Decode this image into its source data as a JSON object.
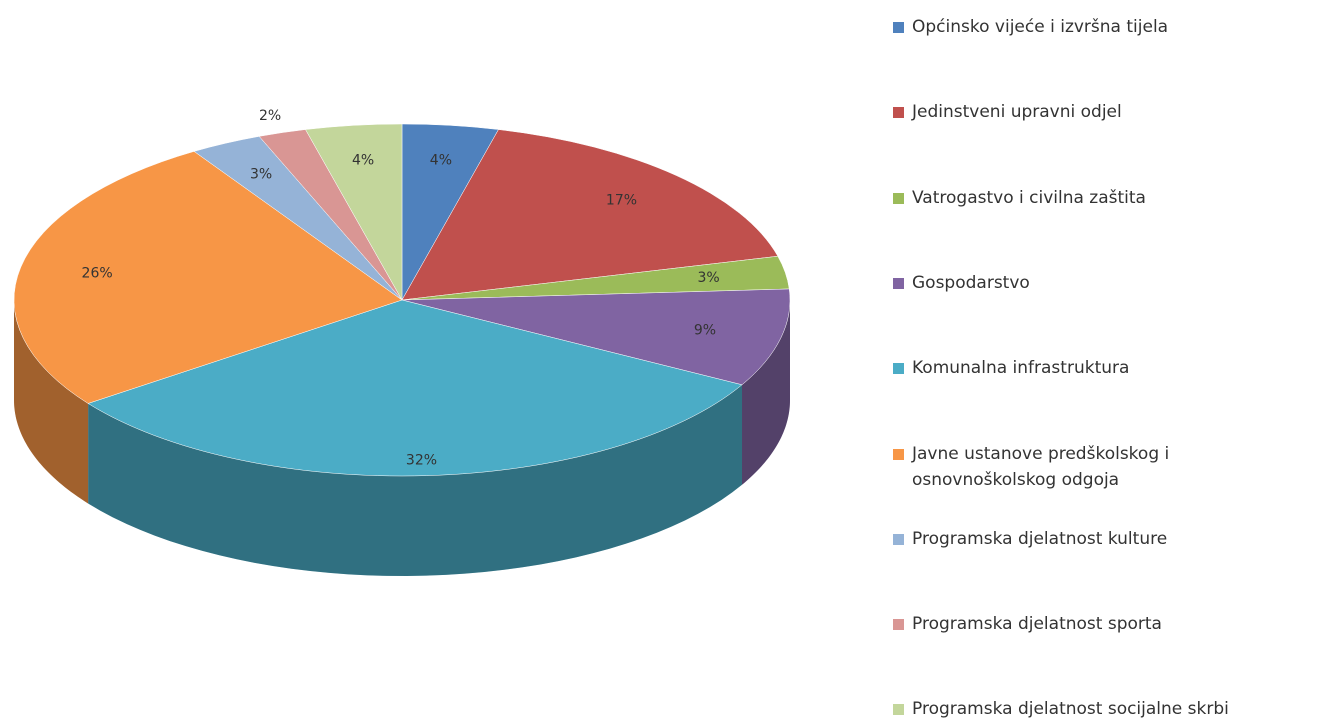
{
  "chart_data": {
    "type": "pie",
    "categories": [
      "Općinsko vijeće i izvršna tijela",
      "Jedinstveni upravni odjel",
      "Vatrogastvo i civilna zaštita",
      "Gospodarstvo",
      "Komunalna infrastruktura",
      "Javne ustanove predškolskog i osnovnoškolskog odgoja",
      "Programska djelatnost kulture",
      "Programska djelatnost sporta",
      "Programska djelatnost socijalne skrbi"
    ],
    "values": [
      4,
      17,
      3,
      9,
      32,
      26,
      3,
      2,
      4
    ],
    "value_labels": [
      "4%",
      "17%",
      "3%",
      "9%",
      "32%",
      "26%",
      "3%",
      "2%",
      "4%"
    ],
    "colors": [
      "#4f81bd",
      "#c0504d",
      "#9bbb59",
      "#8064a2",
      "#4bacc6",
      "#f79646",
      "#95b3d7",
      "#d99694",
      "#c3d69b"
    ],
    "legend": "right"
  }
}
